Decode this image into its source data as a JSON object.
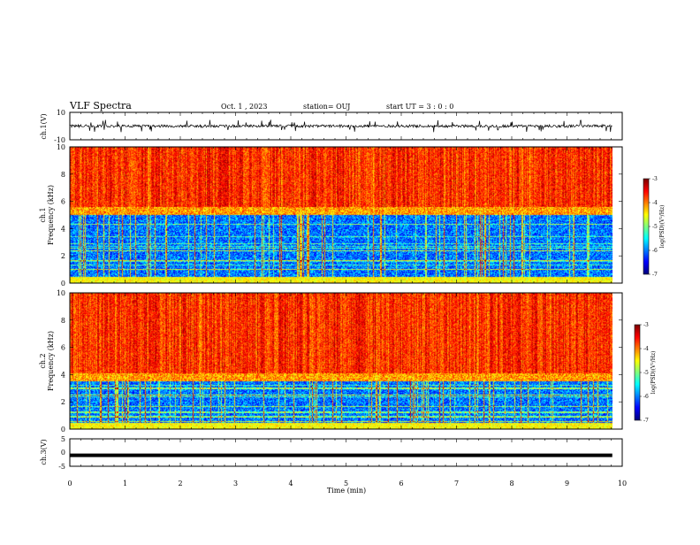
{
  "header": {
    "title": "VLF Spectra",
    "date": "Oct. 1 , 2023",
    "station": "station= OUJ",
    "start": "start  UT =  3 : 0 : 0"
  },
  "chart_data": [
    {
      "type": "line",
      "ylabel": "ch.1(V)",
      "ylim": [
        -10,
        10
      ],
      "y_ticks": [
        "10",
        "-10"
      ],
      "x_range_min": [
        0,
        9.82
      ],
      "description_level": "noisy waveform centered near 0 V with spikes to about ±4 V"
    },
    {
      "type": "heatmap",
      "ylabel_top": "ch.1",
      "ylabel": "Frequency (kHz)",
      "ylim": [
        0,
        10
      ],
      "y_ticks": [
        "0",
        "2",
        "4",
        "6",
        "8",
        "10"
      ],
      "x_range_min": [
        0,
        9.82
      ],
      "colorbar": {
        "label": "log(PSD)(V²/Hz)",
        "ticks": [
          "-3",
          "-4",
          "-5",
          "-6",
          "-7"
        ],
        "range": [
          -7,
          -3
        ]
      },
      "boundary_khz": 5.0
    },
    {
      "type": "heatmap",
      "ylabel_top": "ch.2",
      "ylabel": "Frequency (kHz)",
      "ylim": [
        0,
        10
      ],
      "y_ticks": [
        "0",
        "2",
        "4",
        "6",
        "8",
        "10"
      ],
      "x_range_min": [
        0,
        9.82
      ],
      "colorbar": {
        "label": "log(PSD)(V²/Hz)",
        "ticks": [
          "-3",
          "-4",
          "-5",
          "-6",
          "-7"
        ],
        "range": [
          -7,
          -3
        ]
      },
      "boundary_khz": 3.5
    },
    {
      "type": "line",
      "ylabel": "ch.3(V)",
      "ylim": [
        -5,
        5
      ],
      "y_ticks": [
        "5",
        "0",
        "-5"
      ],
      "constant_value": -1.0,
      "x_range_min": [
        0,
        9.82
      ],
      "xlabel": "Time (min)",
      "xlim": [
        0,
        10
      ],
      "x_ticks": [
        "0",
        "1",
        "2",
        "3",
        "4",
        "5",
        "6",
        "7",
        "8",
        "9",
        "10"
      ]
    }
  ]
}
